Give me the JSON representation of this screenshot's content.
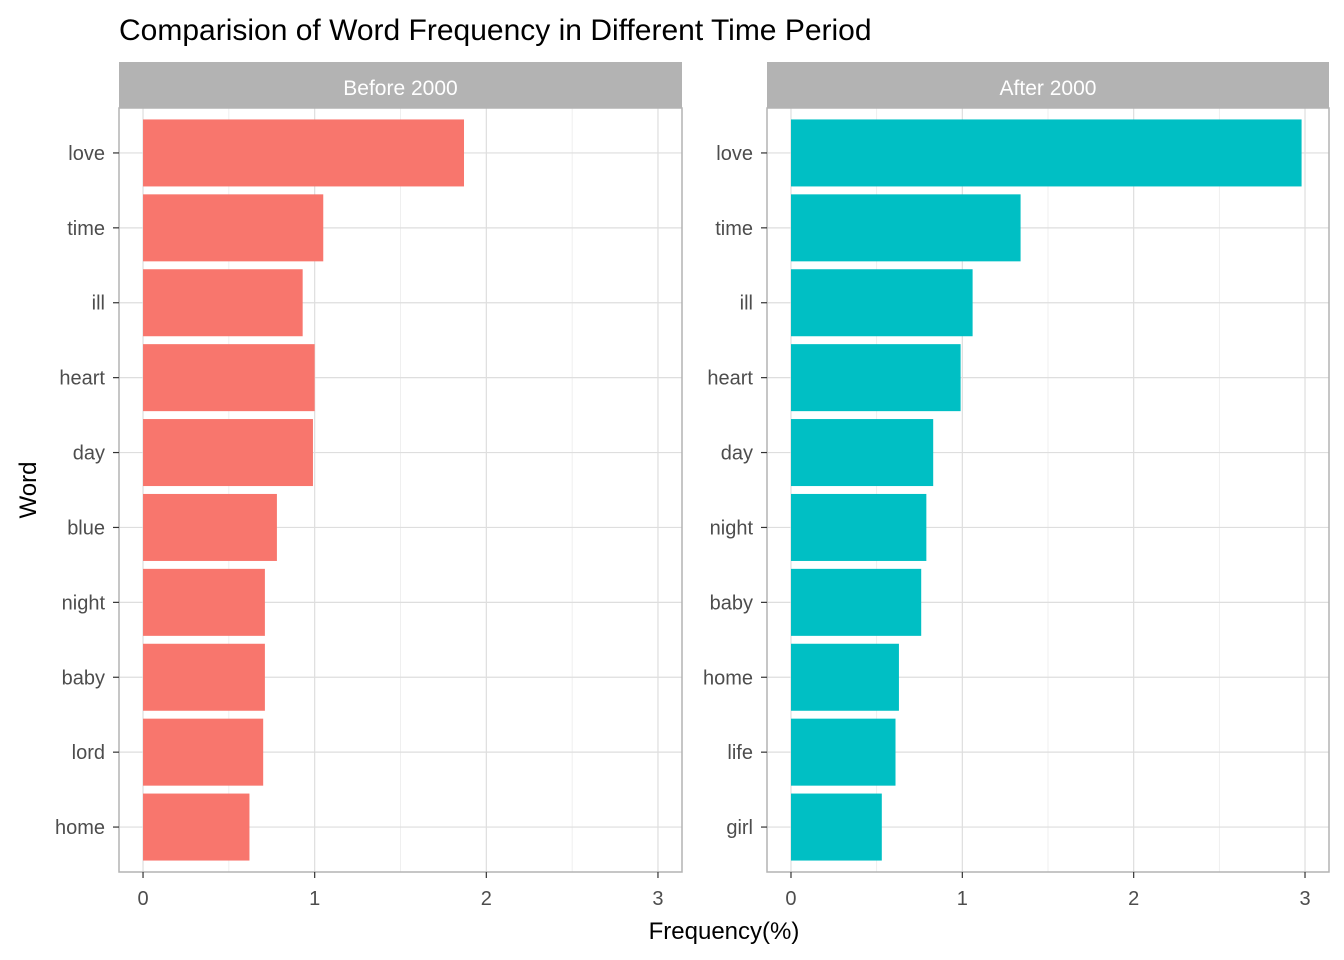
{
  "chart_data": {
    "type": "bar",
    "orientation": "horizontal",
    "title": "Comparision of Word Frequency in Different Time Period",
    "xlabel": "Frequency(%)",
    "ylabel": "Word",
    "xlim": [
      -0.14,
      3.14
    ],
    "x_ticks": [
      "0",
      "1",
      "2",
      "3"
    ],
    "grid": true,
    "legend": "none",
    "panels": [
      {
        "name": "Before 2000",
        "color": "#F8766D",
        "categories": [
          "love",
          "time",
          "ill",
          "heart",
          "day",
          "blue",
          "night",
          "baby",
          "lord",
          "home"
        ],
        "values": [
          1.87,
          1.05,
          0.93,
          1.0,
          0.99,
          0.78,
          0.71,
          0.71,
          0.7,
          0.62
        ]
      },
      {
        "name": "After 2000",
        "color": "#00BFC4",
        "categories": [
          "love",
          "time",
          "ill",
          "heart",
          "day",
          "night",
          "baby",
          "home",
          "life",
          "girl"
        ],
        "values": [
          2.98,
          1.34,
          1.06,
          0.99,
          0.83,
          0.79,
          0.76,
          0.63,
          0.61,
          0.53
        ]
      }
    ]
  }
}
